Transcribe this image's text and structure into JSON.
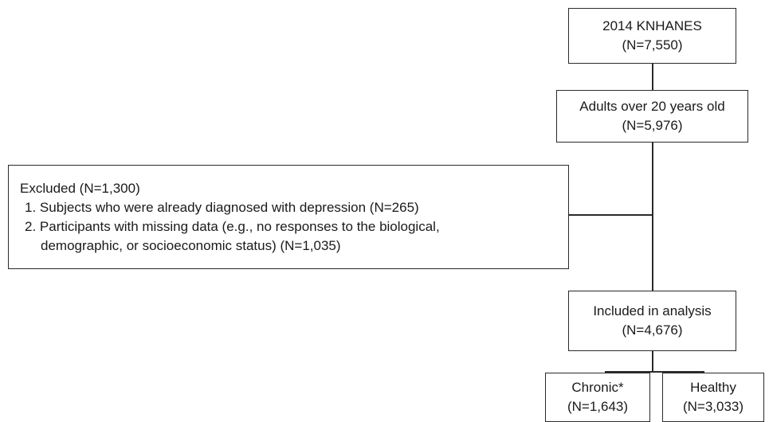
{
  "diagram": {
    "source": {
      "line1": "2014 KNHANES",
      "line2": "(N=7,550)"
    },
    "adults": {
      "line1": "Adults over 20 years old",
      "line2": "(N=5,976)"
    },
    "excluded": {
      "heading": "Excluded (N=1,300)",
      "item1": "1. Subjects who were already diagnosed with depression (N=265)",
      "item2_line1": "2. Participants with missing data (e.g., no responses to the biological,",
      "item2_line2": "demographic, or socioeconomic status) (N=1,035)"
    },
    "included": {
      "line1": "Included in analysis",
      "line2": "(N=4,676)"
    },
    "chronic": {
      "line1": "Chronic*",
      "line2": "(N=1,643)"
    },
    "healthy": {
      "line1": "Healthy",
      "line2": "(N=3,033)"
    }
  }
}
